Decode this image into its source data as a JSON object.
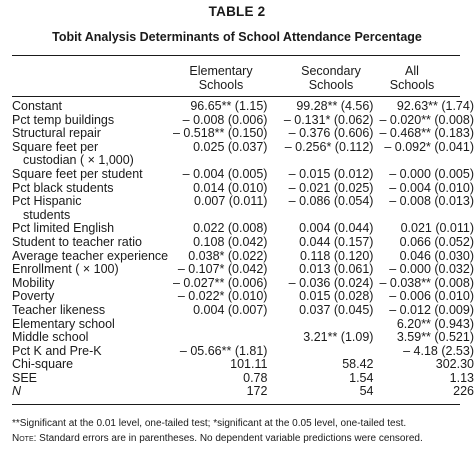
{
  "table_number": "TABLE 2",
  "caption": "Tobit Analysis Determinants of School Attendance Percentage",
  "columns": [
    {
      "line1": "Elementary",
      "line2": "Schools"
    },
    {
      "line1": "Secondary",
      "line2": "Schools"
    },
    {
      "line1": "All",
      "line2": "Schools"
    }
  ],
  "rows": [
    {
      "label": "Constant",
      "elementary": "96.65** (1.15)",
      "secondary": "99.28** (4.56)",
      "all": "92.63** (1.74)"
    },
    {
      "label": "Pct temp buildings",
      "elementary": "– 0.008 (0.006)",
      "secondary": "– 0.131* (0.062)",
      "all": "– 0.020** (0.008)"
    },
    {
      "label": "Structural repair",
      "elementary": "– 0.518** (0.150)",
      "secondary": "– 0.376 (0.606)",
      "all": "– 0.468** (0.183)"
    },
    {
      "label": "Square feet per",
      "elementary": "0.025 (0.037)",
      "secondary": "– 0.256* (0.112)",
      "all": "– 0.092* (0.041)"
    },
    {
      "label": "custodian ( × 1,000)",
      "indent": true,
      "elementary": "",
      "secondary": "",
      "all": ""
    },
    {
      "label": "Square feet per student",
      "elementary": "– 0.004 (0.005)",
      "secondary": "– 0.015 (0.012)",
      "all": "– 0.000 (0.005)"
    },
    {
      "label": "Pct black students",
      "elementary": "0.014 (0.010)",
      "secondary": "– 0.021 (0.025)",
      "all": "– 0.004 (0.010)"
    },
    {
      "label": "Pct Hispanic",
      "elementary": "0.007 (0.011)",
      "secondary": "– 0.086 (0.054)",
      "all": "– 0.008 (0.013)"
    },
    {
      "label": "students",
      "indent": true,
      "elementary": "",
      "secondary": "",
      "all": ""
    },
    {
      "label": "Pct limited English",
      "elementary": "0.022 (0.008)",
      "secondary": "0.004 (0.044)",
      "all": "0.021 (0.011)"
    },
    {
      "label": "Student to teacher ratio",
      "elementary": "0.108 (0.042)",
      "secondary": "0.044 (0.157)",
      "all": "0.066 (0.052)"
    },
    {
      "label": "Average teacher experience",
      "elementary": "0.038* (0.022)",
      "secondary": "0.118 (0.120)",
      "all": "0.046 (0.030)"
    },
    {
      "label": "Enrollment ( × 100)",
      "elementary": "– 0.107* (0.042)",
      "secondary": "0.013 (0.061)",
      "all": "– 0.000 (0.032)"
    },
    {
      "label": "Mobility",
      "elementary": "– 0.027** (0.006)",
      "secondary": "– 0.036 (0.024)",
      "all": "– 0.038** (0.008)"
    },
    {
      "label": "Poverty",
      "elementary": "– 0.022* (0.010)",
      "secondary": "0.015 (0.028)",
      "all": "– 0.006 (0.010)"
    },
    {
      "label": "Teacher likeness",
      "elementary": "0.004 (0.007)",
      "secondary": "0.037 (0.045)",
      "all": "– 0.012 (0.009)"
    },
    {
      "label": "Elementary school",
      "elementary": "",
      "secondary": "",
      "all": "6.20** (0.943)"
    },
    {
      "label": "Middle school",
      "elementary": "",
      "secondary": "3.21** (1.09)",
      "all": "3.59** (0.521)"
    },
    {
      "label": "Pct K and Pre-K",
      "elementary": "– 05.66** (1.81)",
      "secondary": "",
      "all": "– 4.18 (2.53)"
    },
    {
      "label": "Chi-square",
      "elementary": "101.11",
      "secondary": "58.42",
      "all": "302.30"
    },
    {
      "label": "SEE",
      "elementary": "0.78",
      "secondary": "1.54",
      "all": "1.13"
    },
    {
      "label": "N",
      "italic": true,
      "elementary": "172",
      "secondary": "54",
      "all": "226"
    }
  ],
  "footnote": "**Significant at the 0.01 level, one-tailed test; *significant at the 0.05 level, one-tailed test.",
  "note_label": "Note:",
  "note_text": " Standard errors are in parentheses. No dependent variable predictions were censored."
}
